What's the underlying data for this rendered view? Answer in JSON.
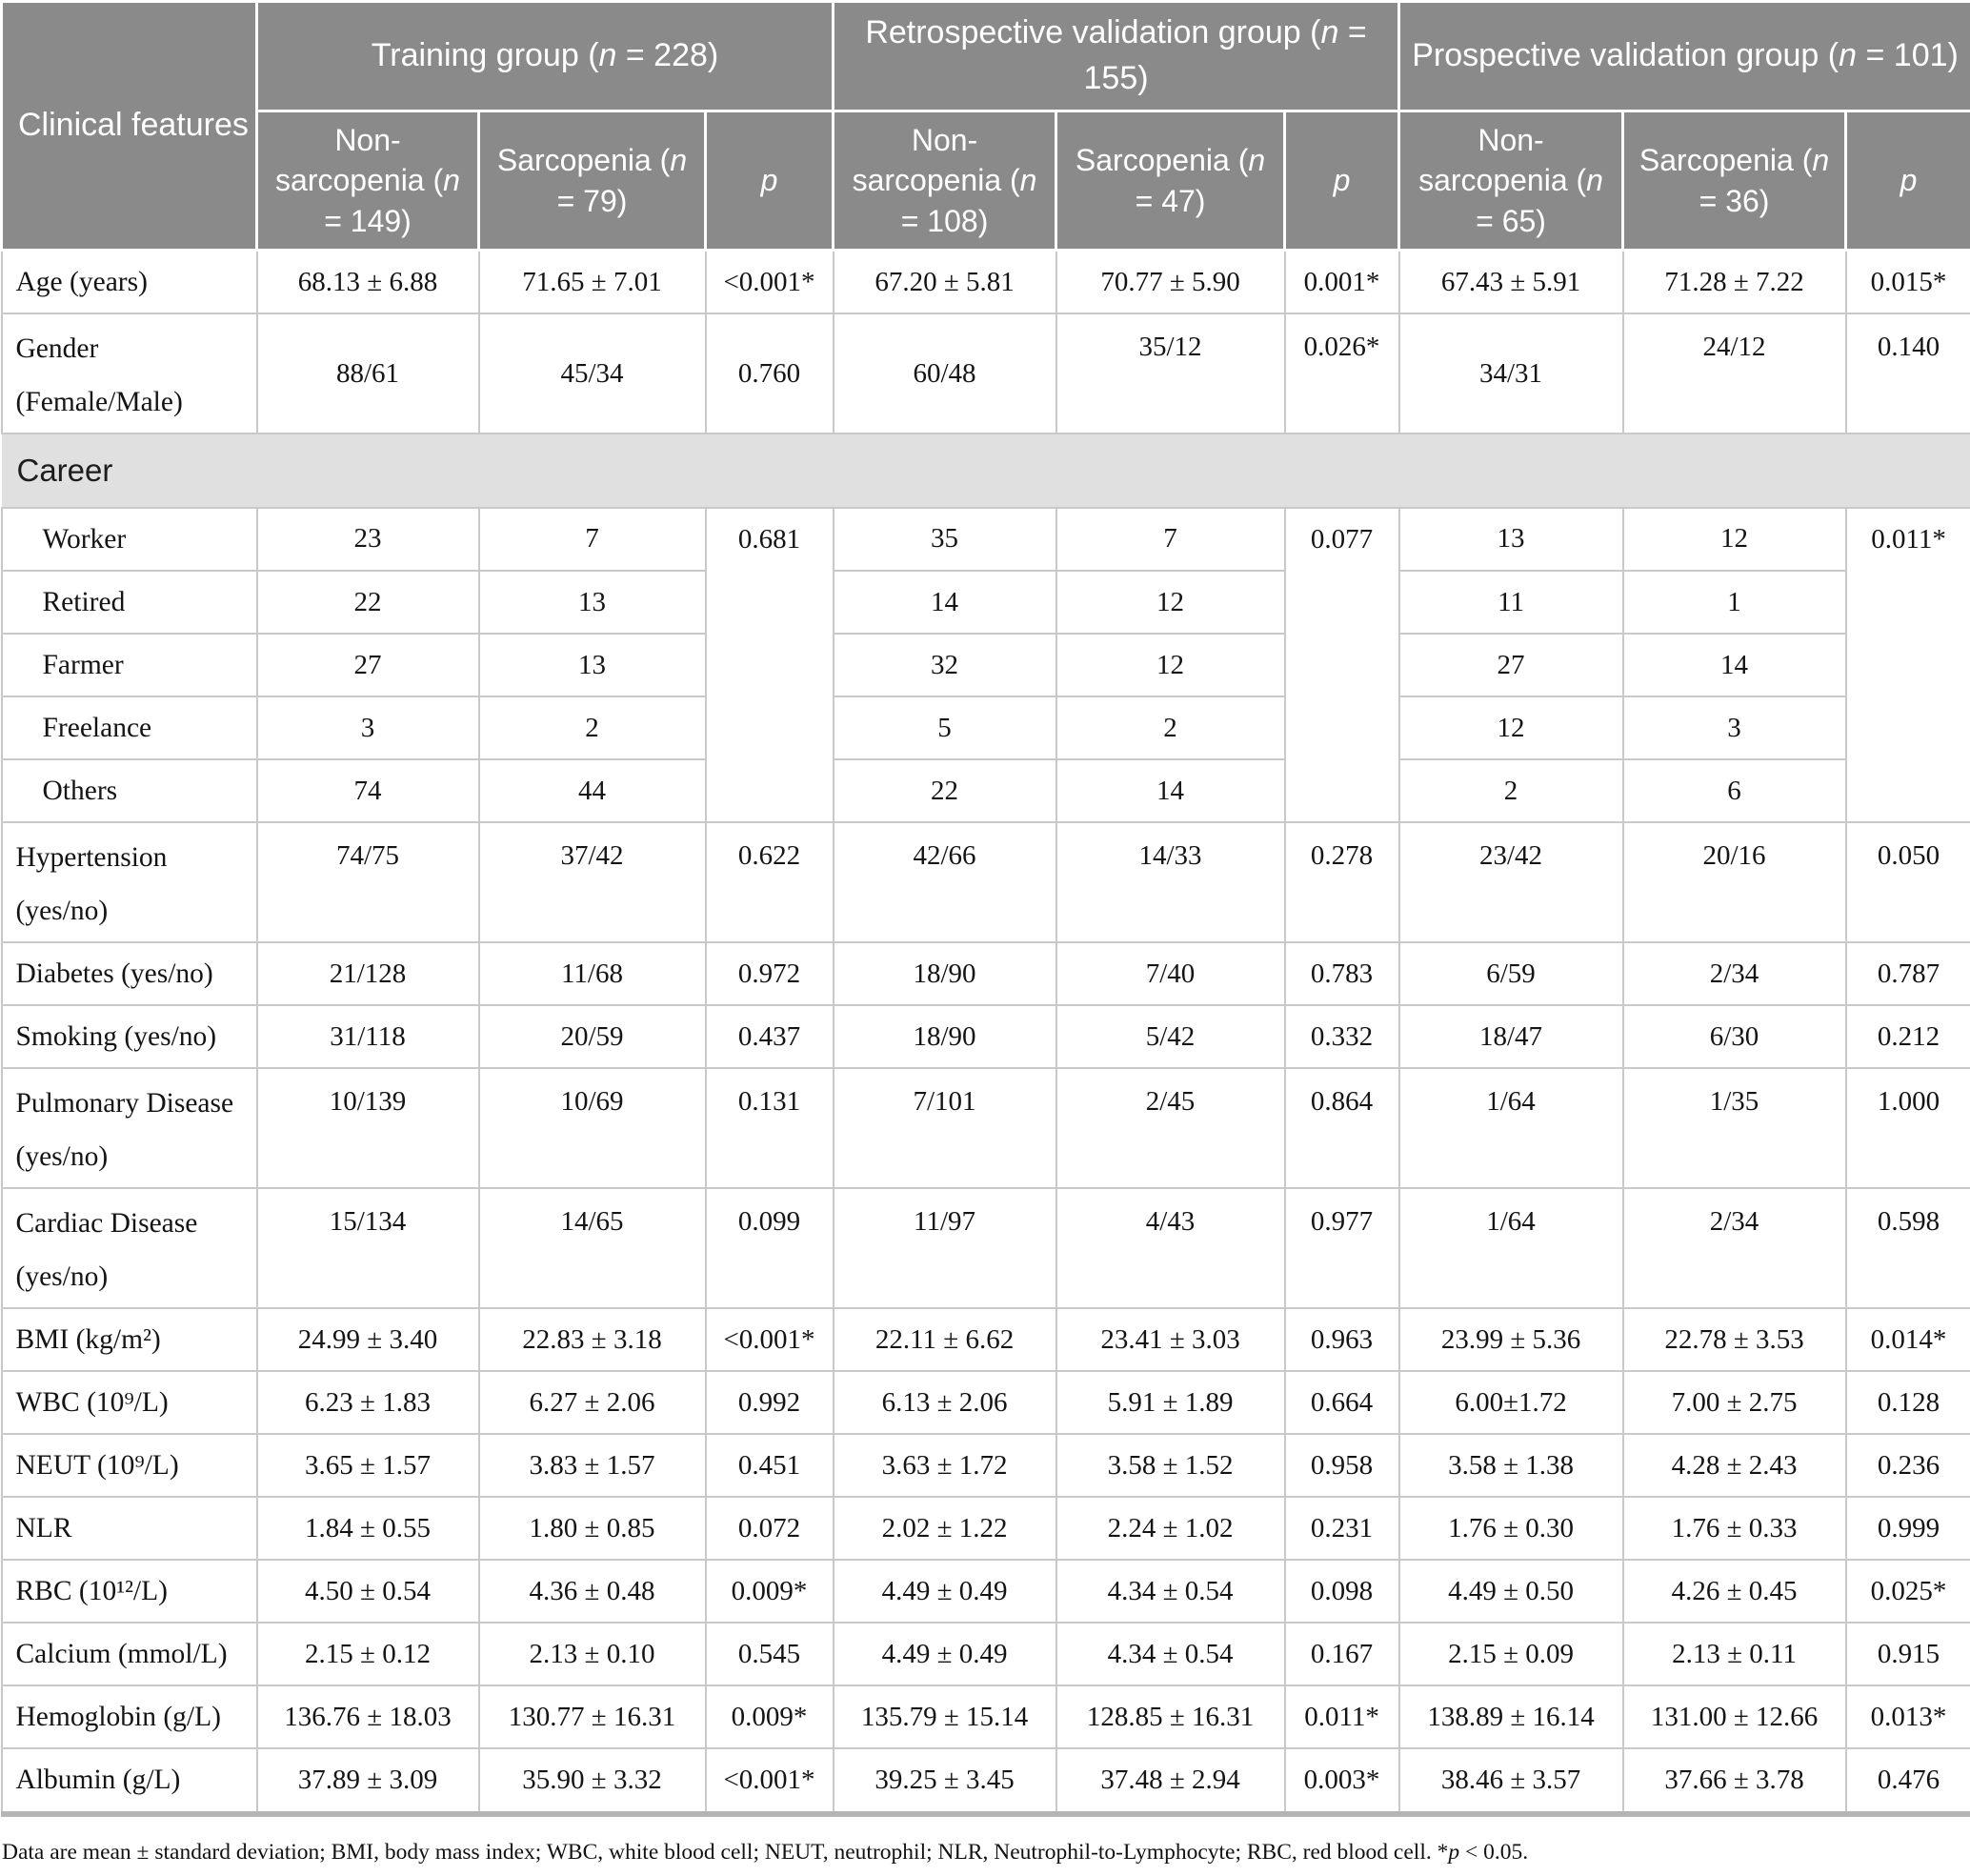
{
  "table": {
    "corner_header": "Clinical features",
    "groups": [
      {
        "label": "Training group (n = 228)",
        "columns": [
          "Non-sarcopenia (n = 149)",
          "Sarcopenia (n = 79)",
          "p"
        ]
      },
      {
        "label": "Retrospective validation group (n = 155)",
        "columns": [
          "Non-sarcopenia (n = 108)",
          "Sarcopenia (n = 47)",
          "p"
        ]
      },
      {
        "label": "Prospective validation group (n = 101)",
        "columns": [
          "Non-sarcopenia (n = 65)",
          "Sarcopenia (n = 36)",
          "p"
        ]
      }
    ],
    "rows": [
      {
        "label": "Age (years)",
        "cells": [
          "68.13 ± 6.88",
          "71.65 ± 7.01",
          "<0.001*",
          "67.20 ± 5.81",
          "70.77 ± 5.90",
          "0.001*",
          "67.43 ± 5.91",
          "71.28 ± 7.22",
          "0.015*"
        ]
      },
      {
        "label": "Gender (Female/Male)",
        "cells": [
          "88/61",
          "45/34",
          "0.760",
          "60/48",
          "35/12",
          "0.026*",
          "34/31",
          "24/12",
          "0.140"
        ]
      },
      {
        "type": "section",
        "label": "Career"
      },
      {
        "label": "Worker",
        "sub": true,
        "p_rowspan": 5,
        "cells": [
          "23",
          "7",
          "0.681",
          "35",
          "7",
          "0.077",
          "13",
          "12",
          "0.011*"
        ]
      },
      {
        "label": "Retired",
        "sub": true,
        "cells": [
          "22",
          "13",
          "14",
          "12",
          "11",
          "1"
        ]
      },
      {
        "label": "Farmer",
        "sub": true,
        "cells": [
          "27",
          "13",
          "32",
          "12",
          "27",
          "14"
        ]
      },
      {
        "label": "Freelance",
        "sub": true,
        "cells": [
          "3",
          "2",
          "5",
          "2",
          "12",
          "3"
        ]
      },
      {
        "label": "Others",
        "sub": true,
        "cells": [
          "74",
          "44",
          "22",
          "14",
          "2",
          "6"
        ]
      },
      {
        "label": "Hypertension (yes/no)",
        "cells": [
          "74/75",
          "37/42",
          "0.622",
          "42/66",
          "14/33",
          "0.278",
          "23/42",
          "20/16",
          "0.050"
        ]
      },
      {
        "label": "Diabetes (yes/no)",
        "cells": [
          "21/128",
          "11/68",
          "0.972",
          "18/90",
          "7/40",
          "0.783",
          "6/59",
          "2/34",
          "0.787"
        ]
      },
      {
        "label": "Smoking (yes/no)",
        "cells": [
          "31/118",
          "20/59",
          "0.437",
          "18/90",
          "5/42",
          "0.332",
          "18/47",
          "6/30",
          "0.212"
        ]
      },
      {
        "label": "Pulmonary Disease (yes/no)",
        "cells": [
          "10/139",
          "10/69",
          "0.131",
          "7/101",
          "2/45",
          "0.864",
          "1/64",
          "1/35",
          "1.000"
        ]
      },
      {
        "label": "Cardiac Disease (yes/no)",
        "cells": [
          "15/134",
          "14/65",
          "0.099",
          "11/97",
          "4/43",
          "0.977",
          "1/64",
          "2/34",
          "0.598"
        ]
      },
      {
        "label": "BMI (kg/m²)",
        "cells": [
          "24.99 ± 3.40",
          "22.83 ± 3.18",
          "<0.001*",
          "22.11 ± 6.62",
          "23.41 ± 3.03",
          "0.963",
          "23.99 ± 5.36",
          "22.78 ± 3.53",
          "0.014*"
        ]
      },
      {
        "label": "WBC (10⁹/L)",
        "cells": [
          "6.23 ± 1.83",
          "6.27 ± 2.06",
          "0.992",
          "6.13 ± 2.06",
          "5.91 ± 1.89",
          "0.664",
          "6.00±1.72",
          "7.00 ± 2.75",
          "0.128"
        ]
      },
      {
        "label": "NEUT (10⁹/L)",
        "cells": [
          "3.65 ± 1.57",
          "3.83 ± 1.57",
          "0.451",
          "3.63 ± 1.72",
          "3.58 ± 1.52",
          "0.958",
          "3.58 ± 1.38",
          "4.28 ± 2.43",
          "0.236"
        ]
      },
      {
        "label": "NLR",
        "cells": [
          "1.84 ± 0.55",
          "1.80 ± 0.85",
          "0.072",
          "2.02 ± 1.22",
          "2.24 ± 1.02",
          "0.231",
          "1.76 ± 0.30",
          "1.76 ± 0.33",
          "0.999"
        ]
      },
      {
        "label": "RBC (10¹²/L)",
        "cells": [
          "4.50 ± 0.54",
          "4.36 ± 0.48",
          "0.009*",
          "4.49 ± 0.49",
          "4.34 ± 0.54",
          "0.098",
          "4.49 ± 0.50",
          "4.26 ± 0.45",
          "0.025*"
        ]
      },
      {
        "label": "Calcium (mmol/L)",
        "cells": [
          "2.15 ± 0.12",
          "2.13 ± 0.10",
          "0.545",
          "4.49 ± 0.49",
          "4.34 ± 0.54",
          "0.167",
          "2.15 ± 0.09",
          "2.13 ± 0.11",
          "0.915"
        ]
      },
      {
        "label": "Hemoglobin (g/L)",
        "cells": [
          "136.76 ± 18.03",
          "130.77 ± 16.31",
          "0.009*",
          "135.79 ± 15.14",
          "128.85 ± 16.31",
          "0.011*",
          "138.89 ± 16.14",
          "131.00 ± 12.66",
          "0.013*"
        ]
      },
      {
        "label": "Albumin (g/L)",
        "cells": [
          "37.89 ± 3.09",
          "35.90 ± 3.32",
          "<0.001*",
          "39.25 ± 3.45",
          "37.48 ± 2.94",
          "0.003*",
          "38.46 ± 3.57",
          "37.66 ± 3.78",
          "0.476"
        ]
      }
    ]
  },
  "footnote": "Data are mean ± standard deviation; BMI, body mass index; WBC, white blood cell; NEUT, neutrophil; NLR, Neutrophil-to-Lymphocyte; RBC, red blood cell. *p < 0.05."
}
